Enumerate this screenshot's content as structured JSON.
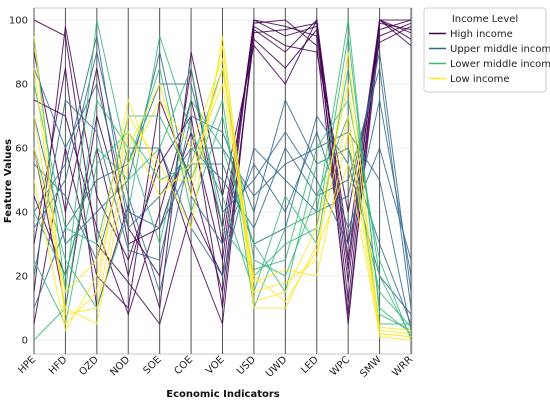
{
  "chart_data": {
    "type": "parallel-coordinates",
    "xlabel": "Economic Indicators",
    "ylabel": "Feature Values",
    "ylim": [
      0,
      100
    ],
    "yticks": [
      0,
      20,
      40,
      60,
      80,
      100
    ],
    "categories": [
      "HPE",
      "HFD",
      "OZD",
      "NOD",
      "SOE",
      "COE",
      "VOE",
      "USD",
      "UWD",
      "LED",
      "WPC",
      "SMW",
      "WRR"
    ],
    "grid": true,
    "legend": {
      "title": "Income Level",
      "placement": "outside-top-right"
    },
    "series": [
      {
        "name": "High income",
        "color": "#440154",
        "lines": [
          [
            100,
            95,
            30,
            18,
            5,
            40,
            20,
            100,
            95,
            98,
            12,
            100,
            100
          ],
          [
            15,
            98,
            45,
            25,
            55,
            70,
            10,
            97,
            90,
            100,
            25,
            99,
            97
          ],
          [
            60,
            10,
            70,
            35,
            20,
            85,
            30,
            99,
            100,
            92,
            8,
            95,
            99
          ],
          [
            5,
            60,
            20,
            10,
            75,
            50,
            15,
            94,
            85,
            97,
            30,
            100,
            94
          ],
          [
            90,
            40,
            85,
            30,
            35,
            65,
            25,
            100,
            98,
            95,
            18,
            97,
            100
          ],
          [
            30,
            85,
            10,
            42,
            10,
            90,
            45,
            92,
            80,
            100,
            5,
            100,
            92
          ],
          [
            45,
            20,
            60,
            20,
            60,
            30,
            5,
            98,
            92,
            90,
            40,
            93,
            98
          ],
          [
            75,
            70,
            35,
            8,
            40,
            75,
            35,
            96,
            97,
            99,
            22,
            100,
            96
          ]
        ]
      },
      {
        "name": "Upper middle income",
        "color": "#31688e",
        "lines": [
          [
            40,
            55,
            95,
            35,
            45,
            60,
            50,
            35,
            60,
            45,
            50,
            85,
            10
          ],
          [
            70,
            30,
            40,
            50,
            90,
            45,
            30,
            55,
            40,
            65,
            35,
            60,
            25
          ],
          [
            20,
            75,
            65,
            28,
            25,
            70,
            65,
            40,
            75,
            55,
            60,
            30,
            5
          ],
          [
            55,
            45,
            25,
            60,
            60,
            35,
            20,
            60,
            50,
            40,
            45,
            90,
            15
          ],
          [
            85,
            60,
            80,
            40,
            35,
            55,
            55,
            30,
            35,
            70,
            55,
            20,
            8
          ],
          [
            10,
            35,
            50,
            55,
            80,
            80,
            40,
            50,
            65,
            50,
            30,
            75,
            20
          ],
          [
            35,
            50,
            90,
            45,
            15,
            60,
            60,
            45,
            55,
            60,
            65,
            50,
            3
          ]
        ]
      },
      {
        "name": "Lower middle income",
        "color": "#35b779",
        "lines": [
          [
            95,
            15,
            100,
            55,
            85,
            40,
            70,
            20,
            30,
            35,
            95,
            10,
            2
          ],
          [
            25,
            5,
            55,
            65,
            50,
            55,
            85,
            25,
            20,
            45,
            70,
            5,
            5
          ],
          [
            60,
            25,
            10,
            40,
            95,
            65,
            45,
            15,
            45,
            30,
            85,
            20,
            1
          ],
          [
            0,
            10,
            75,
            60,
            30,
            75,
            60,
            30,
            15,
            55,
            60,
            15,
            4
          ],
          [
            80,
            35,
            30,
            70,
            70,
            50,
            75,
            10,
            35,
            40,
            100,
            8,
            3
          ],
          [
            40,
            20,
            60,
            50,
            60,
            85,
            35,
            22,
            25,
            60,
            75,
            25,
            0
          ]
        ]
      },
      {
        "name": "Low income",
        "color": "#fde725",
        "lines": [
          [
            95,
            5,
            15,
            70,
            55,
            35,
            95,
            15,
            18,
            25,
            90,
            2,
            1
          ],
          [
            70,
            10,
            5,
            55,
            75,
            60,
            88,
            10,
            10,
            30,
            70,
            3,
            2
          ],
          [
            50,
            3,
            20,
            65,
            45,
            55,
            80,
            18,
            22,
            20,
            65,
            1,
            0
          ],
          [
            85,
            8,
            10,
            60,
            80,
            45,
            92,
            12,
            15,
            35,
            80,
            4,
            3
          ],
          [
            60,
            15,
            25,
            75,
            50,
            50,
            85,
            20,
            12,
            28,
            55,
            2,
            1
          ]
        ]
      }
    ]
  }
}
